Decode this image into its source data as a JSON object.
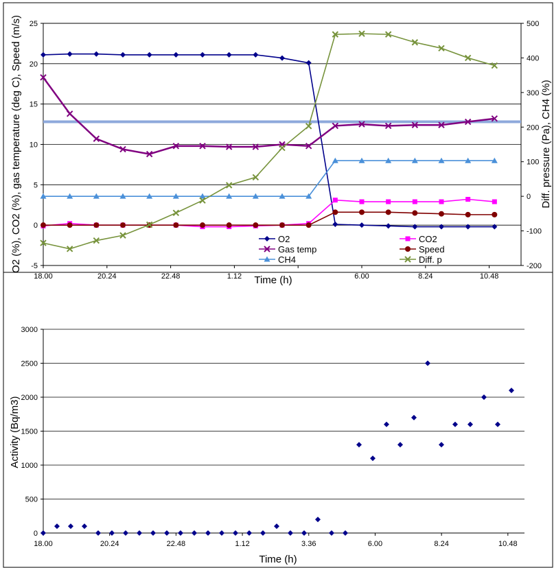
{
  "chart_data": [
    {
      "type": "line",
      "x": [
        "18.00",
        "19.12",
        "20.24",
        "21.36",
        "22.48",
        "0.00",
        "1.12",
        "2.24",
        "3.36",
        "4.48",
        "6.00",
        "7.12",
        "8.24",
        "9.36",
        "10.48"
      ],
      "x_tick_labels": [
        "18.00",
        "20.24",
        "22.48",
        "1.12",
        "3.36",
        "6.00",
        "8.24",
        "10.48"
      ],
      "x_positions": [
        18.0,
        19.2,
        20.4,
        21.6,
        22.8,
        24.0,
        25.2,
        26.4,
        27.6,
        28.8,
        30.0,
        31.2,
        32.4,
        33.6,
        34.8
      ],
      "xlabel": "Time (h)",
      "ylabel": "O2 (%), CO2 (%), gas temperature (deg C), Speed (m/s)",
      "y2label": "Diff. pressure (Pa), CH4 (%)",
      "ylim": [
        -5,
        25
      ],
      "yticks": [
        -5,
        0,
        5,
        10,
        15,
        20,
        25
      ],
      "y2lim": [
        -200,
        500
      ],
      "y2ticks": [
        -200,
        -100,
        0,
        100,
        200,
        300,
        400,
        500
      ],
      "grid": true,
      "legend_position": "bottom-center",
      "reference_line_y": 12.8,
      "series": [
        {
          "name": "O2",
          "axis": "left",
          "color": "#00008B",
          "marker": "diamond",
          "x": [
            18.0,
            19.0,
            20.0,
            21.0,
            22.0,
            23.0,
            24.0,
            25.0,
            26.0,
            27.0,
            28.0,
            29.0,
            30.0,
            31.0,
            32.0,
            33.0,
            34.0,
            35.0
          ],
          "values": [
            21.1,
            21.2,
            21.2,
            21.1,
            21.1,
            21.1,
            21.1,
            21.1,
            21.1,
            20.7,
            20.1,
            0.1,
            0.0,
            -0.1,
            -0.2,
            -0.2,
            -0.2,
            -0.2
          ]
        },
        {
          "name": "CO2",
          "axis": "left",
          "color": "#FF00FF",
          "marker": "square",
          "x": [
            18.0,
            19.0,
            20.0,
            21.0,
            22.0,
            23.0,
            24.0,
            25.0,
            26.0,
            27.0,
            28.0,
            29.0,
            30.0,
            31.0,
            32.0,
            33.0,
            34.0,
            35.0
          ],
          "values": [
            -0.1,
            0.2,
            0.0,
            0.0,
            0.0,
            0.0,
            -0.2,
            -0.2,
            -0.1,
            0.0,
            0.2,
            3.1,
            2.9,
            2.9,
            2.9,
            2.9,
            3.2,
            2.9
          ]
        },
        {
          "name": "Gas temp",
          "axis": "left",
          "color": "#800080",
          "marker": "x",
          "x": [
            18.0,
            19.0,
            20.0,
            21.0,
            22.0,
            23.0,
            24.0,
            25.0,
            26.0,
            27.0,
            28.0,
            29.0,
            30.0,
            31.0,
            32.0,
            33.0,
            34.0,
            35.0
          ],
          "values": [
            18.3,
            13.8,
            10.7,
            9.4,
            8.8,
            9.8,
            9.8,
            9.7,
            9.7,
            10.0,
            9.8,
            12.3,
            12.5,
            12.3,
            12.4,
            12.4,
            12.8,
            13.2
          ]
        },
        {
          "name": "Speed",
          "axis": "left",
          "color": "#800000",
          "marker": "circle",
          "x": [
            18.0,
            19.0,
            20.0,
            21.0,
            22.0,
            23.0,
            24.0,
            25.0,
            26.0,
            27.0,
            28.0,
            29.0,
            30.0,
            31.0,
            32.0,
            33.0,
            34.0,
            35.0
          ],
          "values": [
            0.0,
            0.0,
            0.0,
            0.0,
            0.0,
            0.0,
            0.0,
            0.0,
            0.0,
            0.0,
            0.0,
            1.6,
            1.6,
            1.6,
            1.5,
            1.4,
            1.3,
            1.3
          ]
        },
        {
          "name": "CH4",
          "axis": "right",
          "color": "#4A90D9",
          "marker": "triangle",
          "x": [
            18.0,
            19.0,
            20.0,
            21.0,
            22.0,
            23.0,
            24.0,
            25.0,
            26.0,
            27.0,
            28.0,
            29.0,
            30.0,
            31.0,
            32.0,
            33.0,
            34.0,
            35.0
          ],
          "values": [
            0,
            0,
            0,
            0,
            0,
            0,
            0,
            0,
            0,
            0,
            0,
            103,
            103,
            103,
            103,
            103,
            103,
            103
          ]
        },
        {
          "name": "Diff. p",
          "axis": "right",
          "color": "#77933C",
          "marker": "x",
          "x": [
            18.0,
            19.0,
            20.0,
            21.0,
            22.0,
            23.0,
            24.0,
            25.0,
            26.0,
            27.0,
            28.0,
            29.0,
            30.0,
            31.0,
            32.0,
            33.0,
            34.0,
            35.0
          ],
          "values": [
            -135,
            -152,
            -128,
            -113,
            -82,
            -48,
            -12,
            32,
            55,
            140,
            203,
            468,
            470,
            468,
            445,
            428,
            400,
            378
          ]
        }
      ]
    },
    {
      "type": "scatter",
      "x_tick_labels": [
        "18.00",
        "20.24",
        "22.48",
        "1.12",
        "3.36",
        "6.00",
        "8.24",
        "10.48"
      ],
      "xlabel": "Time (h)",
      "ylabel": "Activity (Bq/m3)",
      "ylim": [
        0,
        3000
      ],
      "yticks": [
        0,
        500,
        1000,
        1500,
        2000,
        2500,
        3000
      ],
      "grid": true,
      "series": [
        {
          "color": "#00008B",
          "marker": "diamond",
          "x": [
            18.0,
            19.0,
            19.6,
            20.2,
            20.8,
            21.6,
            22.2,
            22.8,
            23.4,
            24.0,
            24.6,
            25.2,
            25.8,
            26.4,
            27.0,
            27.6,
            28.2,
            28.8,
            29.4,
            30.0,
            30.6,
            31.2,
            31.8,
            32.4,
            33.0,
            33.6,
            34.2,
            34.8,
            35.4,
            36.0
          ],
          "values": [
            0,
            100,
            100,
            100,
            0,
            0,
            0,
            0,
            0,
            0,
            0,
            0,
            0,
            0,
            0,
            100,
            0,
            0,
            200,
            0,
            0,
            1300,
            1100,
            1600,
            1300,
            1700,
            2500,
            1300,
            1600,
            1600
          ]
        },
        {
          "color": "#00008B",
          "marker": "diamond",
          "x": [
            36.6,
            37.2,
            37.8
          ],
          "values": [
            2000,
            1600,
            2100
          ]
        }
      ]
    }
  ]
}
